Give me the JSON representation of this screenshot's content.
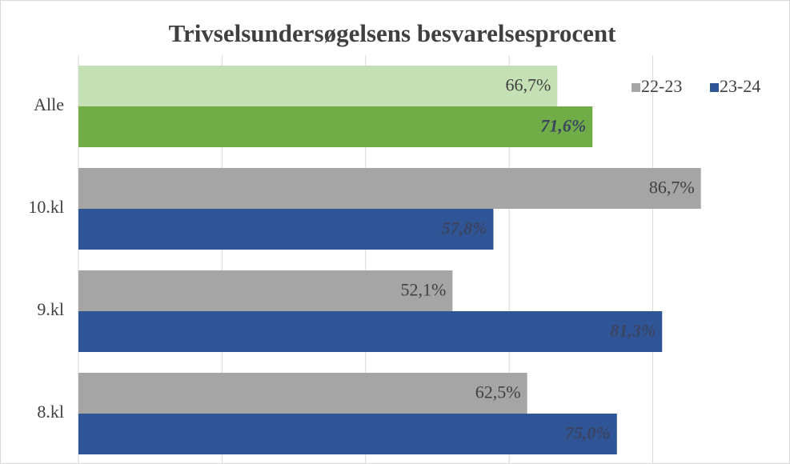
{
  "chart_data": {
    "type": "bar",
    "orientation": "horizontal",
    "title": "Trivselsundersøgelsens besvarelsesprocent",
    "categories": [
      "Alle",
      "10.kl",
      "9.kl",
      "8.kl"
    ],
    "series": [
      {
        "name": "22-23",
        "color": "#a5a5a5",
        "colors": [
          "#c5e0b4",
          "#a5a5a5",
          "#a5a5a5",
          "#a5a5a5"
        ],
        "values": [
          66.7,
          86.7,
          52.1,
          62.5
        ],
        "value_labels": [
          "66,7%",
          "86,7%",
          "52,1%",
          "62,5%"
        ]
      },
      {
        "name": "23-24",
        "color": "#2f5597",
        "colors": [
          "#70ad47",
          "#2f5597",
          "#2f5597",
          "#2f5597"
        ],
        "values": [
          71.6,
          57.8,
          81.3,
          75.0
        ],
        "value_labels": [
          "71,6%",
          "57,8%",
          "81,3%",
          "75,0%"
        ]
      }
    ],
    "xlim": [
      0,
      100
    ],
    "xticks": [
      0,
      20,
      40,
      60,
      80
    ],
    "grid": true,
    "legend": "upper right"
  }
}
